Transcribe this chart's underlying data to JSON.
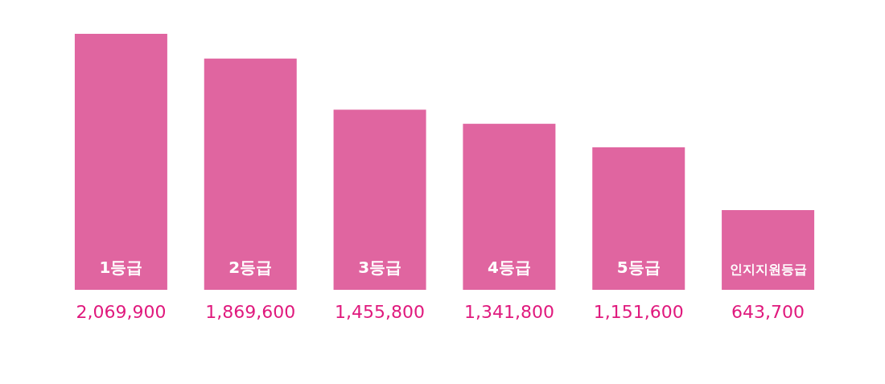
{
  "chart_data": {
    "type": "bar",
    "categories": [
      "1등급",
      "2등급",
      "3등급",
      "4등급",
      "5등급",
      "인지지원등급"
    ],
    "values": [
      2069900,
      1869600,
      1455800,
      1341800,
      1151600,
      643700
    ],
    "color": "#e065a0",
    "value_labels": [
      "2,069,900",
      "1,869,600",
      "1,455,800",
      "1,341,800",
      "1,151,600",
      "643,700"
    ]
  }
}
